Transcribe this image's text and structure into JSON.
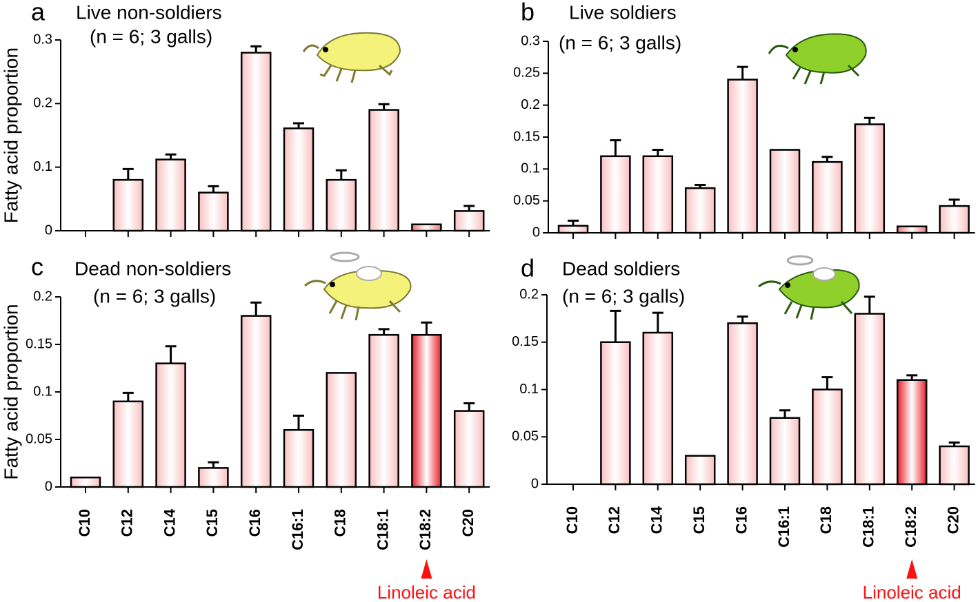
{
  "chart_data": [
    {
      "type": "bar",
      "panel_label": "a",
      "title": "Live non-soldiers",
      "subtitle": "(n = 6; 3 galls)",
      "y_label": "Fatty acid proportion",
      "values": [
        0,
        0.08,
        0.112,
        0.06,
        0.28,
        0.161,
        0.08,
        0.19,
        0.01,
        0.031
      ],
      "errors": [
        0,
        0.017,
        0.008,
        0.01,
        0.01,
        0.008,
        0.015,
        0.009,
        0,
        0.008
      ],
      "colors": [
        "#f9c0c0",
        "#f9c0c0",
        "#f9c0c0",
        "#f9c0c0",
        "#f9c0c0",
        "#f9c0c0",
        "#f9c0c0",
        "#f9c0c0",
        "#f07a7a",
        "#f9c0c0"
      ],
      "ylim": [
        0,
        0.3
      ],
      "yticks": [
        0,
        0.1,
        0.2,
        0.3
      ]
    },
    {
      "type": "bar",
      "panel_label": "b",
      "title": "Live soldiers",
      "subtitle": "(n = 6; 3 galls)",
      "values": [
        0.011,
        0.12,
        0.12,
        0.07,
        0.24,
        0.13,
        0.111,
        0.17,
        0.01,
        0.042
      ],
      "errors": [
        0.008,
        0.025,
        0.01,
        0.005,
        0.02,
        0,
        0.008,
        0.01,
        0,
        0.01
      ],
      "colors": [
        "#f9c0c0",
        "#f9c0c0",
        "#f9c0c0",
        "#f9c0c0",
        "#f9c0c0",
        "#f9c0c0",
        "#f9c0c0",
        "#f9c0c0",
        "#f07a7a",
        "#f9c0c0"
      ],
      "ylim": [
        0,
        0.3
      ],
      "yticks": [
        0,
        0.05,
        0.1,
        0.15,
        0.2,
        0.25,
        0.3
      ]
    },
    {
      "type": "bar",
      "panel_label": "c",
      "title": "Dead non-soldiers",
      "subtitle": "(n = 6; 3 galls)",
      "y_label": "Fatty acid proportion",
      "annotation": "Linoleic acid",
      "categories": [
        "C10",
        "C12",
        "C14",
        "C15",
        "C16",
        "C16:1",
        "C18",
        "C18:1",
        "C18:2",
        "C20"
      ],
      "values": [
        0.01,
        0.09,
        0.13,
        0.02,
        0.18,
        0.06,
        0.12,
        0.16,
        0.16,
        0.08
      ],
      "errors": [
        0,
        0.009,
        0.018,
        0.006,
        0.014,
        0.015,
        0,
        0.006,
        0.013,
        0.008
      ],
      "colors": [
        "#f9c0c0",
        "#f9c0c0",
        "#f9c0c0",
        "#f9c0c0",
        "#f9c0c0",
        "#f9c0c0",
        "#f9c0c0",
        "#f9c0c0",
        "#e8202a",
        "#f9c0c0"
      ],
      "ylim": [
        0,
        0.2
      ],
      "yticks": [
        0,
        0.05,
        0.1,
        0.15,
        0.2
      ]
    },
    {
      "type": "bar",
      "panel_label": "d",
      "title": "Dead soldiers",
      "subtitle": "(n = 6; 3 galls)",
      "annotation": "Linoleic acid",
      "categories": [
        "C10",
        "C12",
        "C14",
        "C15",
        "C16",
        "C16:1",
        "C18",
        "C18:1",
        "C18:2",
        "C20"
      ],
      "values": [
        0,
        0.15,
        0.16,
        0.03,
        0.17,
        0.07,
        0.1,
        0.18,
        0.11,
        0.04
      ],
      "errors": [
        0,
        0.033,
        0.021,
        0,
        0.007,
        0.008,
        0.013,
        0.018,
        0.005,
        0.004
      ],
      "colors": [
        "#f9c0c0",
        "#f9c0c0",
        "#f9c0c0",
        "#f9c0c0",
        "#f9c0c0",
        "#f9c0c0",
        "#f9c0c0",
        "#f9c0c0",
        "#e8202a",
        "#f9c0c0"
      ],
      "ylim": [
        0,
        0.2
      ],
      "yticks": [
        0,
        0.05,
        0.1,
        0.15,
        0.2
      ]
    }
  ]
}
